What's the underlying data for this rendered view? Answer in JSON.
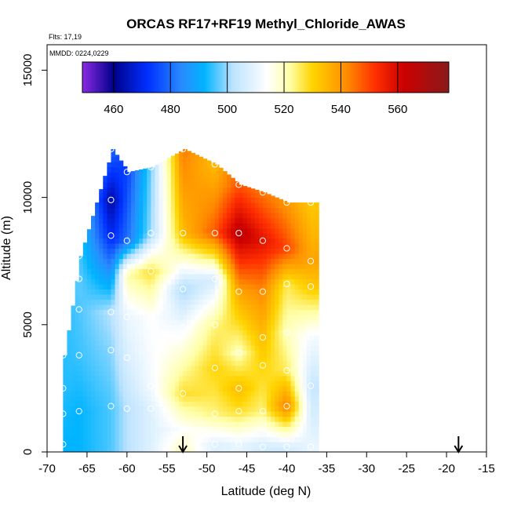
{
  "chart_data": {
    "type": "heatmap",
    "title": "ORCAS RF17+RF19 Methyl_Chloride_AWAS",
    "xlabel": "Latitude (deg N)",
    "ylabel": "Altitude (m)",
    "xlim": [
      -70,
      -15
    ],
    "ylim": [
      0,
      16000
    ],
    "x_ticks": [
      -70,
      -65,
      -60,
      -55,
      -50,
      -45,
      -40,
      -35,
      -30,
      -25,
      -20,
      -15
    ],
    "y_ticks": [
      0,
      5000,
      10000,
      15000
    ],
    "flights_note": "Flts: 17,19",
    "dates_note": "MMDD: 0224,0229",
    "colorbar": {
      "min": 449,
      "max": 578,
      "ticks": [
        460,
        480,
        500,
        520,
        540,
        560
      ],
      "colors": [
        [
          449,
          "#8a2be2"
        ],
        [
          460,
          "#00008b"
        ],
        [
          472,
          "#0030ff"
        ],
        [
          484,
          "#2a8bff"
        ],
        [
          492,
          "#00b4ff"
        ],
        [
          502,
          "#bde3ff"
        ],
        [
          514,
          "#ffffff"
        ],
        [
          522,
          "#ffffa8"
        ],
        [
          530,
          "#ffd400"
        ],
        [
          542,
          "#ff8c00"
        ],
        [
          552,
          "#ff3000"
        ],
        [
          562,
          "#cc0000"
        ],
        [
          578,
          "#8b1a1a"
        ]
      ]
    },
    "arrows_latitude": [
      -53,
      -18.5
    ],
    "profiles": [
      {
        "lat": -68,
        "points": [
          [
            300,
            492
          ],
          [
            1500,
            493
          ],
          [
            2500,
            494
          ],
          [
            3800,
            494
          ]
        ]
      },
      {
        "lat": -66,
        "points": [
          [
            1600,
            492
          ],
          [
            3800,
            495
          ],
          [
            5600,
            496
          ],
          [
            6800,
            497
          ],
          [
            7700,
            496
          ]
        ]
      },
      {
        "lat": -62,
        "points": [
          [
            1800,
            496
          ],
          [
            4000,
            499
          ],
          [
            5500,
            502
          ],
          [
            8500,
            470
          ],
          [
            9900,
            462
          ],
          [
            11900,
            480
          ]
        ]
      },
      {
        "lat": -60,
        "points": [
          [
            1700,
            502
          ],
          [
            3700,
            507
          ],
          [
            5300,
            510
          ],
          [
            7000,
            522
          ],
          [
            8300,
            480
          ],
          [
            11000,
            474
          ]
        ]
      },
      {
        "lat": -57,
        "points": [
          [
            1700,
            508
          ],
          [
            2600,
            512
          ],
          [
            5300,
            514
          ],
          [
            7100,
            528
          ],
          [
            8600,
            500
          ],
          [
            11200,
            498
          ]
        ]
      },
      {
        "lat": -53,
        "points": [
          [
            200,
            520
          ],
          [
            900,
            514
          ],
          [
            2300,
            528
          ],
          [
            4900,
            512
          ],
          [
            6400,
            500
          ],
          [
            8600,
            534
          ],
          [
            11900,
            544
          ]
        ]
      },
      {
        "lat": -49,
        "points": [
          [
            300,
            508
          ],
          [
            1500,
            524
          ],
          [
            3300,
            530
          ],
          [
            5000,
            524
          ],
          [
            6800,
            506
          ],
          [
            8600,
            548
          ],
          [
            11300,
            534
          ]
        ]
      },
      {
        "lat": -46,
        "points": [
          [
            300,
            510
          ],
          [
            1600,
            528
          ],
          [
            2500,
            534
          ],
          [
            3900,
            520
          ],
          [
            6300,
            538
          ],
          [
            8600,
            566
          ],
          [
            10500,
            548
          ]
        ]
      },
      {
        "lat": -43,
        "points": [
          [
            200,
            506
          ],
          [
            1600,
            524
          ],
          [
            3400,
            530
          ],
          [
            4500,
            534
          ],
          [
            6300,
            542
          ],
          [
            8300,
            558
          ],
          [
            10200,
            544
          ]
        ]
      },
      {
        "lat": -40,
        "points": [
          [
            200,
            506
          ],
          [
            1800,
            544
          ],
          [
            3200,
            526
          ],
          [
            4700,
            520
          ],
          [
            6600,
            526
          ],
          [
            8000,
            550
          ],
          [
            9800,
            540
          ]
        ]
      },
      {
        "lat": -37,
        "points": [
          [
            200,
            510
          ],
          [
            2600,
            504
          ],
          [
            4500,
            512
          ],
          [
            6500,
            532
          ],
          [
            7500,
            538
          ],
          [
            9800,
            532
          ]
        ]
      }
    ]
  }
}
